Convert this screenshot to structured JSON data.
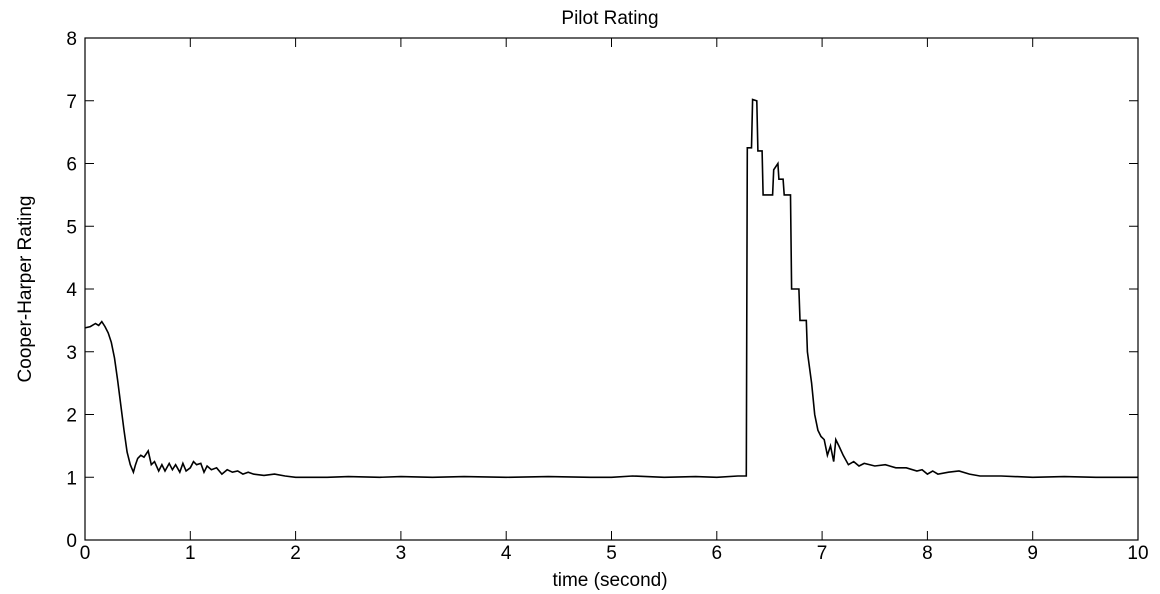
{
  "chart_data": {
    "type": "line",
    "title": "Pilot Rating",
    "xlabel": "time (second)",
    "ylabel": "Cooper-Harper Rating",
    "xlim": [
      0,
      10
    ],
    "ylim": [
      0,
      8
    ],
    "xticks": [
      "0",
      "1",
      "2",
      "3",
      "4",
      "5",
      "6",
      "7",
      "8",
      "9",
      "10"
    ],
    "yticks": [
      "0",
      "1",
      "2",
      "3",
      "4",
      "5",
      "6",
      "7",
      "8"
    ],
    "grid": false,
    "line_color": "#000000",
    "series": [
      {
        "x": [
          0,
          0.05,
          0.1,
          0.13,
          0.16,
          0.19,
          0.22,
          0.25,
          0.28,
          0.31,
          0.34,
          0.37,
          0.4,
          0.43,
          0.46,
          0.48,
          0.5,
          0.53,
          0.56,
          0.6,
          0.63,
          0.66,
          0.7,
          0.73,
          0.76,
          0.8,
          0.83,
          0.86,
          0.9,
          0.93,
          0.96,
          1.0,
          1.03,
          1.06,
          1.1,
          1.13,
          1.16,
          1.2,
          1.25,
          1.3,
          1.35,
          1.4,
          1.45,
          1.5,
          1.55,
          1.6,
          1.7,
          1.8,
          1.9,
          2.0,
          2.1,
          2.3,
          2.5,
          2.8,
          3.0,
          3.3,
          3.6,
          4.0,
          4.4,
          4.8,
          5.0,
          5.2,
          5.5,
          5.8,
          6.0,
          6.2,
          6.28,
          6.29,
          6.33,
          6.34,
          6.38,
          6.39,
          6.43,
          6.44,
          6.53,
          6.54,
          6.58,
          6.59,
          6.63,
          6.64,
          6.7,
          6.71,
          6.78,
          6.79,
          6.85,
          6.86,
          6.9,
          6.93,
          6.96,
          6.99,
          7.02,
          7.05,
          7.08,
          7.11,
          7.13,
          7.16,
          7.2,
          7.25,
          7.3,
          7.35,
          7.4,
          7.5,
          7.6,
          7.7,
          7.8,
          7.9,
          7.95,
          8.0,
          8.05,
          8.1,
          8.2,
          8.3,
          8.4,
          8.5,
          8.7,
          9.0,
          9.3,
          9.6,
          10.0
        ],
        "y": [
          3.38,
          3.4,
          3.45,
          3.42,
          3.48,
          3.4,
          3.3,
          3.15,
          2.9,
          2.55,
          2.15,
          1.75,
          1.4,
          1.2,
          1.08,
          1.2,
          1.3,
          1.35,
          1.32,
          1.42,
          1.2,
          1.25,
          1.1,
          1.2,
          1.1,
          1.22,
          1.12,
          1.2,
          1.08,
          1.22,
          1.1,
          1.15,
          1.25,
          1.2,
          1.22,
          1.08,
          1.18,
          1.12,
          1.15,
          1.05,
          1.12,
          1.08,
          1.1,
          1.05,
          1.08,
          1.05,
          1.03,
          1.05,
          1.02,
          1.0,
          1.0,
          1.0,
          1.01,
          1.0,
          1.01,
          1.0,
          1.01,
          1.0,
          1.01,
          1.0,
          1.0,
          1.02,
          1.0,
          1.01,
          1.0,
          1.02,
          1.02,
          6.25,
          6.25,
          7.02,
          7.0,
          6.2,
          6.2,
          5.5,
          5.5,
          5.9,
          6.0,
          5.75,
          5.75,
          5.5,
          5.5,
          4.0,
          4.0,
          3.5,
          3.5,
          3.0,
          2.5,
          2.0,
          1.75,
          1.65,
          1.6,
          1.35,
          1.5,
          1.25,
          1.6,
          1.5,
          1.35,
          1.2,
          1.25,
          1.18,
          1.22,
          1.18,
          1.2,
          1.15,
          1.15,
          1.1,
          1.12,
          1.05,
          1.1,
          1.05,
          1.08,
          1.1,
          1.05,
          1.02,
          1.02,
          1.0,
          1.01,
          1.0,
          1.0
        ]
      }
    ]
  }
}
